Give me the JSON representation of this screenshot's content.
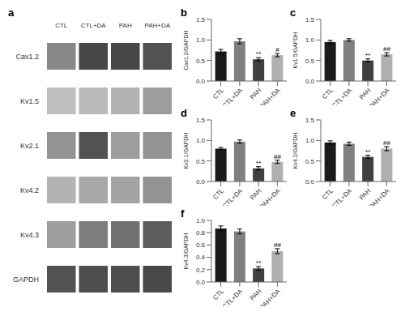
{
  "chart_data": [
    {
      "type": "heatmap",
      "title": "a",
      "x": [
        "CTL",
        "CTL+DA",
        "PAH",
        "PAH+DA"
      ],
      "y": [
        "Cav1.2",
        "Kv1.5",
        "Kv2.1",
        "Kv4.2",
        "Kv4.3",
        "GAPDH"
      ],
      "values": [
        [
          0.55,
          0.85,
          0.85,
          0.8
        ],
        [
          0.3,
          0.32,
          0.35,
          0.45
        ],
        [
          0.5,
          0.8,
          0.45,
          0.5
        ],
        [
          0.35,
          0.4,
          0.42,
          0.5
        ],
        [
          0.45,
          0.6,
          0.65,
          0.75
        ],
        [
          0.8,
          0.82,
          0.82,
          0.84
        ]
      ]
    },
    {
      "type": "bar",
      "title": "b",
      "ylabel": "Cav1.2/GAPDH",
      "categories": [
        "CTL",
        "CTL+DA",
        "PAH",
        "PAH+DA"
      ],
      "values": [
        0.72,
        0.97,
        0.53,
        0.63
      ],
      "errors": [
        0.05,
        0.06,
        0.04,
        0.04
      ],
      "annotations": [
        null,
        null,
        "**",
        "#"
      ],
      "colors": [
        "#1a1a1a",
        "#808080",
        "#404040",
        "#b0b0b0"
      ],
      "ylim": [
        0,
        1.5
      ],
      "yticks": [
        {
          "value": 0,
          "label": "0.0"
        },
        0.5,
        {
          "value": 1,
          "label": "1.0"
        },
        1.5
      ],
      "grid": false
    },
    {
      "type": "bar",
      "title": "c",
      "ylabel": "Kv1.5/GAPDH",
      "categories": [
        "CTL",
        "CTL+DA",
        "PAH",
        "PAH+DA"
      ],
      "values": [
        0.95,
        1.0,
        0.5,
        0.65
      ],
      "errors": [
        0.04,
        0.03,
        0.04,
        0.04
      ],
      "annotations": [
        null,
        null,
        "**",
        "##"
      ],
      "colors": [
        "#1a1a1a",
        "#808080",
        "#404040",
        "#b0b0b0"
      ],
      "ylim": [
        0,
        1.5
      ],
      "yticks": [
        {
          "value": 0,
          "label": "0.0"
        },
        0.5,
        {
          "value": 1,
          "label": "1.0"
        },
        1.5
      ],
      "grid": false
    },
    {
      "type": "bar",
      "title": "d",
      "ylabel": "Kv2.1/GAPDH",
      "categories": [
        "CTL",
        "CTL+DA",
        "PAH",
        "PAH+DA"
      ],
      "values": [
        0.8,
        0.97,
        0.32,
        0.48
      ],
      "errors": [
        0.03,
        0.04,
        0.04,
        0.04
      ],
      "annotations": [
        null,
        null,
        "**",
        "##"
      ],
      "colors": [
        "#1a1a1a",
        "#808080",
        "#404040",
        "#b0b0b0"
      ],
      "ylim": [
        0,
        1.5
      ],
      "yticks": [
        {
          "value": 0,
          "label": "0.0"
        },
        0.5,
        {
          "value": 1,
          "label": "1.0"
        },
        1.5
      ],
      "grid": false
    },
    {
      "type": "bar",
      "title": "e",
      "ylabel": "Kv4.2/GAPDH",
      "categories": [
        "CTL",
        "CTL+DA",
        "PAH",
        "PAH+DA"
      ],
      "values": [
        0.95,
        0.92,
        0.6,
        0.8
      ],
      "errors": [
        0.04,
        0.04,
        0.04,
        0.05
      ],
      "annotations": [
        null,
        null,
        "**",
        "##"
      ],
      "colors": [
        "#1a1a1a",
        "#808080",
        "#404040",
        "#b0b0b0"
      ],
      "ylim": [
        0,
        1.5
      ],
      "yticks": [
        {
          "value": 0,
          "label": "0.0"
        },
        0.5,
        {
          "value": 1,
          "label": "1.0"
        },
        1.5
      ],
      "grid": false
    },
    {
      "type": "bar",
      "title": "f",
      "ylabel": "Kv4.3/GAPDH",
      "categories": [
        "CTL",
        "CTL+DA",
        "PAH",
        "PAH+DA"
      ],
      "values": [
        0.87,
        0.82,
        0.22,
        0.5
      ],
      "errors": [
        0.04,
        0.04,
        0.03,
        0.04
      ],
      "annotations": [
        null,
        null,
        "**",
        "##"
      ],
      "colors": [
        "#1a1a1a",
        "#808080",
        "#404040",
        "#b0b0b0"
      ],
      "ylim": [
        0,
        1.0
      ],
      "yticks": [
        {
          "value": 0,
          "label": "0.0"
        },
        0.2,
        0.4,
        0.6,
        0.8,
        {
          "value": 1,
          "label": "1.0"
        }
      ],
      "grid": false
    }
  ]
}
